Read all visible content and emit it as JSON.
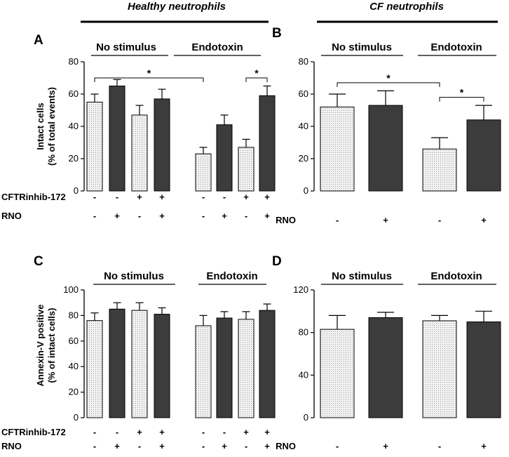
{
  "headers": {
    "left": "Healthy neutrophils",
    "right": "CF neutrophils"
  },
  "row_labels": {
    "inhibitor": "CFTRinhib-172",
    "rno": "RNO"
  },
  "colors": {
    "light_bar": "#eeeeee",
    "dark_bar": "#3c3c3c",
    "stroke": "#000000"
  },
  "chart_data": [
    {
      "id": "A",
      "type": "bar",
      "title": "A",
      "ylabel": [
        "Intact cells",
        "(% of total events)"
      ],
      "ylim": [
        0,
        80
      ],
      "yticks": [
        0,
        20,
        40,
        60,
        80
      ],
      "groups": [
        "No stimulus",
        "Endotoxin"
      ],
      "bars": [
        {
          "group": "No stimulus",
          "inhibitor": "-",
          "rno": "-",
          "value": 55,
          "error": 5
        },
        {
          "group": "No stimulus",
          "inhibitor": "-",
          "rno": "+",
          "value": 65,
          "error": 4
        },
        {
          "group": "No stimulus",
          "inhibitor": "+",
          "rno": "-",
          "value": 47,
          "error": 6
        },
        {
          "group": "No stimulus",
          "inhibitor": "+",
          "rno": "+",
          "value": 57,
          "error": 6
        },
        {
          "group": "Endotoxin",
          "inhibitor": "-",
          "rno": "-",
          "value": 23,
          "error": 4
        },
        {
          "group": "Endotoxin",
          "inhibitor": "-",
          "rno": "+",
          "value": 41,
          "error": 6
        },
        {
          "group": "Endotoxin",
          "inhibitor": "+",
          "rno": "-",
          "value": 27,
          "error": 5
        },
        {
          "group": "Endotoxin",
          "inhibitor": "+",
          "rno": "+",
          "value": 59,
          "error": 6
        }
      ],
      "significance": [
        {
          "from": 0,
          "to": 4,
          "level": 70,
          "label": "*"
        },
        {
          "from": 6,
          "to": 7,
          "level": 70,
          "label": "*"
        }
      ]
    },
    {
      "id": "B",
      "type": "bar",
      "title": "B",
      "ylim": [
        0,
        80
      ],
      "yticks": [
        0,
        20,
        40,
        60,
        80
      ],
      "groups": [
        "No stimulus",
        "Endotoxin"
      ],
      "bars": [
        {
          "group": "No stimulus",
          "rno": "-",
          "value": 52,
          "error": 8
        },
        {
          "group": "No stimulus",
          "rno": "+",
          "value": 53,
          "error": 9
        },
        {
          "group": "Endotoxin",
          "rno": "-",
          "value": 26,
          "error": 7
        },
        {
          "group": "Endotoxin",
          "rno": "+",
          "value": 44,
          "error": 9
        }
      ],
      "significance": [
        {
          "from": 0,
          "to": 2,
          "level": 67,
          "label": "*"
        },
        {
          "from": 2,
          "to": 3,
          "level": 58,
          "label": "*"
        }
      ]
    },
    {
      "id": "C",
      "type": "bar",
      "title": "C",
      "ylabel": [
        "Annexin-V positive",
        "(% of intact cells)"
      ],
      "ylim": [
        0,
        100
      ],
      "yticks": [
        0,
        20,
        40,
        60,
        80,
        100
      ],
      "groups": [
        "No stimulus",
        "Endotoxin"
      ],
      "bars": [
        {
          "group": "No stimulus",
          "inhibitor": "-",
          "rno": "-",
          "value": 76,
          "error": 6
        },
        {
          "group": "No stimulus",
          "inhibitor": "-",
          "rno": "+",
          "value": 85,
          "error": 5
        },
        {
          "group": "No stimulus",
          "inhibitor": "+",
          "rno": "-",
          "value": 84,
          "error": 6
        },
        {
          "group": "No stimulus",
          "inhibitor": "+",
          "rno": "+",
          "value": 81,
          "error": 5
        },
        {
          "group": "Endotoxin",
          "inhibitor": "-",
          "rno": "-",
          "value": 72,
          "error": 8
        },
        {
          "group": "Endotoxin",
          "inhibitor": "-",
          "rno": "+",
          "value": 78,
          "error": 5
        },
        {
          "group": "Endotoxin",
          "inhibitor": "+",
          "rno": "-",
          "value": 77,
          "error": 6
        },
        {
          "group": "Endotoxin",
          "inhibitor": "+",
          "rno": "+",
          "value": 84,
          "error": 5
        }
      ],
      "significance": []
    },
    {
      "id": "D",
      "type": "bar",
      "title": "D",
      "ylim": [
        0,
        120
      ],
      "yticks": [
        0,
        40,
        80,
        120
      ],
      "groups": [
        "No stimulus",
        "Endotoxin"
      ],
      "bars": [
        {
          "group": "No stimulus",
          "rno": "-",
          "value": 83,
          "error": 13
        },
        {
          "group": "No stimulus",
          "rno": "+",
          "value": 94,
          "error": 5
        },
        {
          "group": "Endotoxin",
          "rno": "-",
          "value": 91,
          "error": 5
        },
        {
          "group": "Endotoxin",
          "rno": "+",
          "value": 90,
          "error": 10
        }
      ],
      "significance": []
    }
  ]
}
